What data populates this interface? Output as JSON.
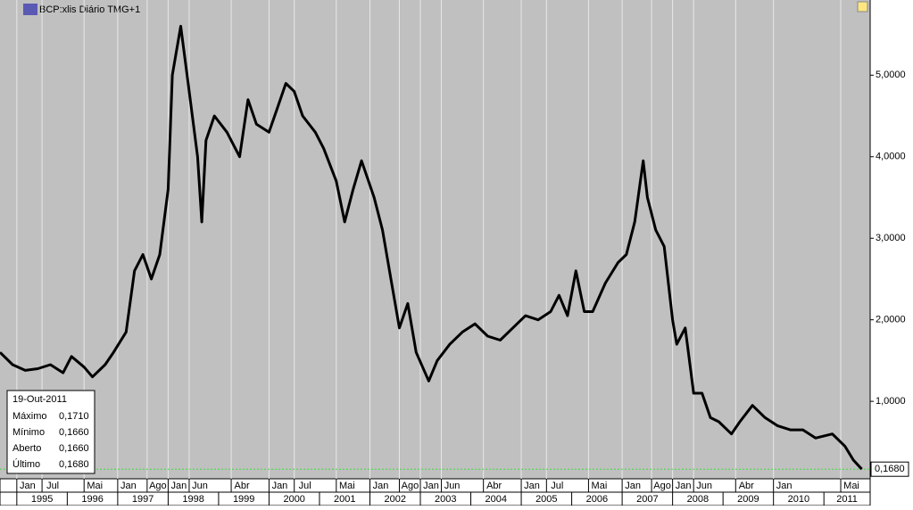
{
  "chart_data": {
    "type": "line",
    "title": "BCP:xlis Diário TMG+1",
    "x": [
      "1994-09",
      "1994-12",
      "1995-03",
      "1995-06",
      "1995-09",
      "1995-12",
      "1996-02",
      "1996-05",
      "1996-07",
      "1996-10",
      "1996-12",
      "1997-03",
      "1997-05",
      "1997-07",
      "1997-09",
      "1997-11",
      "1998-01",
      "1998-02",
      "1998-04",
      "1998-06",
      "1998-08",
      "1998-09",
      "1998-10",
      "1998-12",
      "1999-03",
      "1999-06",
      "1999-08",
      "1999-10",
      "2000-01",
      "2000-03",
      "2000-05",
      "2000-07",
      "2000-09",
      "2000-12",
      "2001-02",
      "2001-05",
      "2001-07",
      "2001-09",
      "2001-11",
      "2002-02",
      "2002-04",
      "2002-06",
      "2002-08",
      "2002-10",
      "2002-12",
      "2003-03",
      "2003-05",
      "2003-08",
      "2003-11",
      "2004-02",
      "2004-05",
      "2004-08",
      "2004-11",
      "2005-02",
      "2005-05",
      "2005-08",
      "2005-10",
      "2005-12",
      "2006-02",
      "2006-04",
      "2006-06",
      "2006-09",
      "2006-12",
      "2007-02",
      "2007-04",
      "2007-06",
      "2007-07",
      "2007-09",
      "2007-11",
      "2008-01",
      "2008-02",
      "2008-04",
      "2008-06",
      "2008-08",
      "2008-10",
      "2008-12",
      "2009-03",
      "2009-05",
      "2009-08",
      "2009-11",
      "2010-02",
      "2010-05",
      "2010-08",
      "2010-11",
      "2011-03",
      "2011-06",
      "2011-08",
      "2011-10"
    ],
    "values": [
      1.6,
      1.45,
      1.38,
      1.4,
      1.45,
      1.35,
      1.55,
      1.42,
      1.3,
      1.45,
      1.6,
      1.85,
      2.6,
      2.8,
      2.5,
      2.8,
      3.6,
      5.0,
      5.6,
      4.8,
      4.0,
      3.2,
      4.2,
      4.5,
      4.3,
      4.0,
      4.7,
      4.4,
      4.3,
      4.6,
      4.9,
      4.8,
      4.5,
      4.3,
      4.1,
      3.7,
      3.2,
      3.6,
      3.95,
      3.5,
      3.1,
      2.5,
      1.9,
      2.2,
      1.6,
      1.25,
      1.5,
      1.7,
      1.85,
      1.95,
      1.8,
      1.75,
      1.9,
      2.05,
      2.0,
      2.1,
      2.3,
      2.05,
      2.6,
      2.1,
      2.1,
      2.45,
      2.7,
      2.8,
      3.2,
      3.95,
      3.5,
      3.1,
      2.9,
      2.0,
      1.7,
      1.9,
      1.1,
      1.1,
      0.8,
      0.75,
      0.6,
      0.75,
      0.95,
      0.8,
      0.7,
      0.65,
      0.65,
      0.55,
      0.6,
      0.45,
      0.28,
      0.168
    ],
    "color": "#000000",
    "xlim": [
      "1994-09",
      "2011-12"
    ],
    "xticks": [
      {
        "value": "1995-01",
        "label": "Jan"
      },
      {
        "value": "1995-07",
        "label": "Jul"
      },
      {
        "value": "1996-05",
        "label": "Mai"
      },
      {
        "value": "1997-01",
        "label": "Jan"
      },
      {
        "value": "1997-08",
        "label": "Ago"
      },
      {
        "value": "1998-01",
        "label": "Jan"
      },
      {
        "value": "1998-06",
        "label": "Jun"
      },
      {
        "value": "1999-04",
        "label": "Abr"
      },
      {
        "value": "2000-01",
        "label": "Jan"
      },
      {
        "value": "2000-07",
        "label": "Jul"
      },
      {
        "value": "2001-05",
        "label": "Mai"
      },
      {
        "value": "2002-01",
        "label": "Jan"
      },
      {
        "value": "2002-08",
        "label": "Ago"
      },
      {
        "value": "2003-01",
        "label": "Jan"
      },
      {
        "value": "2003-06",
        "label": "Jun"
      },
      {
        "value": "2004-04",
        "label": "Abr"
      },
      {
        "value": "2005-01",
        "label": "Jan"
      },
      {
        "value": "2005-07",
        "label": "Jul"
      },
      {
        "value": "2006-05",
        "label": "Mai"
      },
      {
        "value": "2007-01",
        "label": "Jan"
      },
      {
        "value": "2007-08",
        "label": "Ago"
      },
      {
        "value": "2008-01",
        "label": "Jan"
      },
      {
        "value": "2008-06",
        "label": "Jun"
      },
      {
        "value": "2009-04",
        "label": "Abr"
      },
      {
        "value": "2010-01",
        "label": "Jan"
      },
      {
        "value": "2011-05",
        "label": "Mai"
      }
    ],
    "years": [
      1995,
      1996,
      1997,
      1998,
      1999,
      2000,
      2001,
      2002,
      2003,
      2004,
      2005,
      2006,
      2007,
      2008,
      2009,
      2010,
      2011
    ],
    "ylim": [
      0.05,
      5.9
    ],
    "yticks": [
      {
        "value": 1,
        "label": "1,0000"
      },
      {
        "value": 2,
        "label": "2,0000"
      },
      {
        "value": 3,
        "label": "3,0000"
      },
      {
        "value": 4,
        "label": "4,0000"
      },
      {
        "value": 5,
        "label": "5,0000"
      }
    ],
    "grid": true,
    "last_value": 0.168,
    "last_value_label": "0,1680",
    "info_box": {
      "date": "19-Out-2011",
      "rows": [
        [
          "Máximo",
          "0,1710"
        ],
        [
          "Mínimo",
          "0,1660"
        ],
        [
          "Aberto",
          "0,1660"
        ],
        [
          "Último",
          "0,1680"
        ]
      ]
    }
  }
}
